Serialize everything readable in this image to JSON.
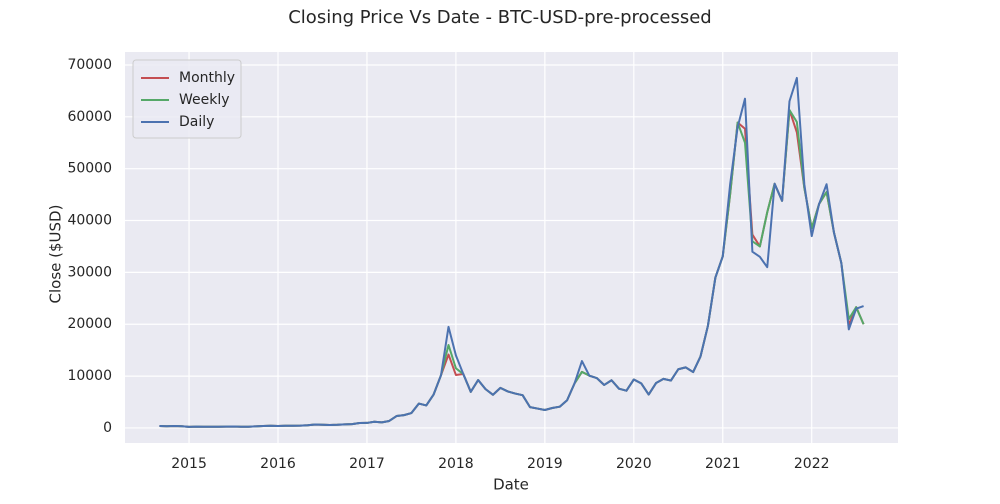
{
  "chart_data": {
    "type": "line",
    "title": "Closing Price Vs Date - BTC-USD-pre-processed",
    "x_label": "Date",
    "y_label": "Close ($USD)",
    "x": [
      2014.667,
      2014.75,
      2014.833,
      2014.917,
      2015.0,
      2015.083,
      2015.167,
      2015.25,
      2015.333,
      2015.417,
      2015.5,
      2015.583,
      2015.667,
      2015.75,
      2015.833,
      2015.917,
      2016.0,
      2016.083,
      2016.167,
      2016.25,
      2016.333,
      2016.417,
      2016.5,
      2016.583,
      2016.667,
      2016.75,
      2016.833,
      2016.917,
      2017.0,
      2017.083,
      2017.167,
      2017.25,
      2017.333,
      2017.417,
      2017.5,
      2017.583,
      2017.667,
      2017.75,
      2017.833,
      2017.917,
      2018.0,
      2018.083,
      2018.167,
      2018.25,
      2018.333,
      2018.417,
      2018.5,
      2018.583,
      2018.667,
      2018.75,
      2018.833,
      2018.917,
      2019.0,
      2019.083,
      2019.167,
      2019.25,
      2019.333,
      2019.417,
      2019.5,
      2019.583,
      2019.667,
      2019.75,
      2019.833,
      2019.917,
      2020.0,
      2020.083,
      2020.167,
      2020.25,
      2020.333,
      2020.417,
      2020.5,
      2020.583,
      2020.667,
      2020.75,
      2020.833,
      2020.917,
      2021.0,
      2021.083,
      2021.167,
      2021.25,
      2021.333,
      2021.417,
      2021.5,
      2021.583,
      2021.667,
      2021.75,
      2021.833,
      2021.917,
      2022.0,
      2022.083,
      2022.167,
      2022.25,
      2022.333,
      2022.417,
      2022.5,
      2022.583
    ],
    "series": [
      {
        "name": "Monthly",
        "color": "#c44e52",
        "values": [
          390,
          340,
          380,
          320,
          220,
          255,
          245,
          235,
          230,
          265,
          285,
          230,
          237,
          315,
          378,
          430,
          370,
          437,
          416,
          448,
          531,
          673,
          624,
          575,
          609,
          700,
          742,
          963,
          970,
          1190,
          1080,
          1350,
          2300,
          2480,
          2880,
          4700,
          4340,
          6470,
          10200,
          14150,
          10220,
          10400,
          6970,
          9240,
          7490,
          6400,
          7730,
          7040,
          6630,
          6320,
          4020,
          3740,
          3460,
          3850,
          4100,
          5350,
          8570,
          10820,
          10090,
          9630,
          8290,
          9200,
          7570,
          7190,
          9350,
          8600,
          6440,
          8660,
          9460,
          9140,
          11320,
          11680,
          10780,
          13800,
          19700,
          29000,
          33100,
          45100,
          58900,
          57700,
          37300,
          35000,
          41600,
          47100,
          43800,
          61300,
          57000,
          46300,
          38500,
          43200,
          45500,
          37700,
          31800,
          19800,
          23300,
          20000
        ]
      },
      {
        "name": "Weekly",
        "color": "#55a868",
        "values": [
          390,
          340,
          380,
          320,
          220,
          255,
          245,
          235,
          230,
          265,
          285,
          230,
          237,
          315,
          378,
          430,
          370,
          437,
          416,
          448,
          531,
          673,
          624,
          575,
          609,
          700,
          742,
          963,
          970,
          1190,
          1080,
          1350,
          2300,
          2480,
          2880,
          4700,
          4340,
          6470,
          10200,
          16000,
          11500,
          10400,
          6970,
          9240,
          7490,
          6400,
          7730,
          7040,
          6630,
          6320,
          4020,
          3740,
          3460,
          3850,
          4100,
          5350,
          8570,
          10820,
          10090,
          9630,
          8290,
          9200,
          7570,
          7190,
          9350,
          8600,
          6440,
          8660,
          9460,
          9140,
          11320,
          11680,
          10780,
          13800,
          19700,
          29000,
          33100,
          45100,
          58900,
          55000,
          36000,
          35000,
          41600,
          47100,
          43800,
          61300,
          59000,
          46300,
          38500,
          43200,
          45500,
          37700,
          31800,
          21000,
          23300,
          20000
        ]
      },
      {
        "name": "Daily",
        "color": "#4c72b0",
        "values": [
          390,
          340,
          380,
          320,
          220,
          255,
          245,
          235,
          230,
          265,
          285,
          230,
          237,
          315,
          378,
          430,
          370,
          437,
          416,
          448,
          531,
          673,
          624,
          575,
          609,
          700,
          742,
          963,
          970,
          1190,
          1080,
          1350,
          2300,
          2480,
          2880,
          4700,
          4340,
          6470,
          10200,
          19500,
          14000,
          10400,
          6970,
          9240,
          7490,
          6400,
          7730,
          7040,
          6630,
          6320,
          4020,
          3740,
          3460,
          3850,
          4100,
          5350,
          8570,
          12900,
          10090,
          9630,
          8290,
          9200,
          7570,
          7190,
          9350,
          8600,
          6440,
          8660,
          9460,
          9140,
          11320,
          11680,
          10780,
          13800,
          19700,
          29000,
          33100,
          47000,
          58000,
          63500,
          34000,
          33000,
          31000,
          47100,
          43800,
          63000,
          67500,
          47000,
          37000,
          43200,
          47000,
          37700,
          31800,
          19000,
          23000,
          23500
        ]
      }
    ],
    "xlim": [
      2014.28,
      2022.97
    ],
    "xticks": [
      2015,
      2016,
      2017,
      2018,
      2019,
      2020,
      2021,
      2022
    ],
    "ylim": [
      -2900,
      72500
    ],
    "yticks": [
      0,
      10000,
      20000,
      30000,
      40000,
      50000,
      60000,
      70000
    ],
    "grid": true,
    "legend": "upper left"
  }
}
